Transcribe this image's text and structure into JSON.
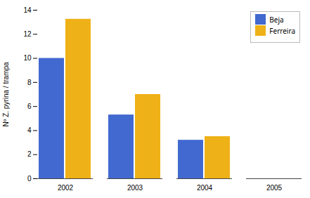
{
  "chart_data": {
    "type": "bar",
    "categories": [
      "2002",
      "2003",
      "2004",
      "2005"
    ],
    "series": [
      {
        "name": "Beja",
        "values": [
          10.0,
          5.3,
          3.2,
          0.0
        ]
      },
      {
        "name": "Ferreira",
        "values": [
          13.25,
          7.0,
          3.5,
          0.0
        ]
      }
    ],
    "ylabel": "Nº Z. pyrina / trampa",
    "ylim": [
      0,
      14
    ],
    "yticks": [
      0,
      2,
      4,
      6,
      8,
      10,
      12,
      14
    ],
    "grid": false,
    "legend": "upper right"
  }
}
